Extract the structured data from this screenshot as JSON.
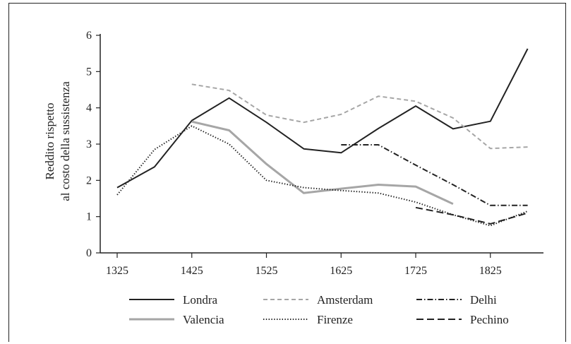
{
  "chart_data": {
    "type": "line",
    "title": "",
    "xlabel": "",
    "ylabel_line1": "Reddito rispetto",
    "ylabel_line2": "al costo della sussistenza",
    "xlim": [
      1300,
      1900
    ],
    "ylim": [
      0,
      6
    ],
    "x_ticks": [
      1325,
      1425,
      1525,
      1625,
      1725,
      1825
    ],
    "y_ticks": [
      0,
      1,
      2,
      3,
      4,
      5,
      6
    ],
    "grid": false,
    "legend_position": "bottom",
    "series": [
      {
        "name": "Londra",
        "color": "#222222",
        "dash": "solid",
        "x": [
          1325,
          1375,
          1425,
          1475,
          1525,
          1575,
          1625,
          1675,
          1725,
          1775,
          1825,
          1875
        ],
        "values": [
          1.8,
          2.37,
          3.65,
          4.27,
          3.6,
          2.87,
          2.76,
          3.43,
          4.05,
          3.42,
          3.63,
          5.63
        ]
      },
      {
        "name": "Amsterdam",
        "color": "#a6a6a6",
        "dash": "dashed",
        "x": [
          1425,
          1475,
          1525,
          1575,
          1625,
          1675,
          1725,
          1775,
          1825,
          1875
        ],
        "values": [
          4.65,
          4.48,
          3.8,
          3.6,
          3.82,
          4.32,
          4.18,
          3.72,
          2.88,
          2.92
        ]
      },
      {
        "name": "Delhi",
        "color": "#222222",
        "dash": "dashdot",
        "x": [
          1625,
          1675,
          1725,
          1775,
          1825,
          1875
        ],
        "values": [
          2.98,
          2.98,
          2.42,
          1.88,
          1.31,
          1.31
        ]
      },
      {
        "name": "Valencia",
        "color": "#a6a6a6",
        "dash": "solid",
        "x": [
          1425,
          1475,
          1525,
          1575,
          1625,
          1675,
          1725,
          1775
        ],
        "values": [
          3.62,
          3.38,
          2.45,
          1.65,
          1.77,
          1.88,
          1.83,
          1.35
        ]
      },
      {
        "name": "Firenze",
        "color": "#222222",
        "dash": "dotted",
        "x": [
          1325,
          1375,
          1425,
          1475,
          1525,
          1575,
          1625,
          1675,
          1725,
          1775,
          1825,
          1875
        ],
        "values": [
          1.6,
          2.85,
          3.5,
          3.0,
          2.0,
          1.8,
          1.72,
          1.65,
          1.4,
          1.05,
          0.75,
          1.15
        ]
      },
      {
        "name": "Pechino",
        "color": "#222222",
        "dash": "longdash",
        "x": [
          1725,
          1775,
          1825,
          1875
        ],
        "values": [
          1.25,
          1.05,
          0.8,
          1.1
        ]
      }
    ]
  }
}
